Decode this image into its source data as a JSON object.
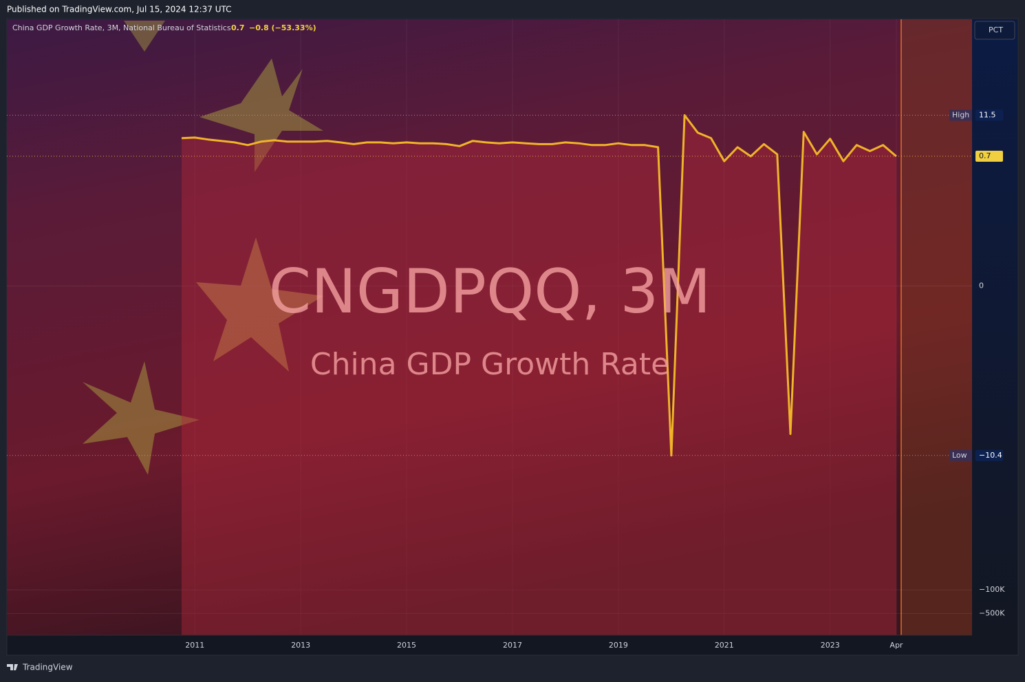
{
  "header": {
    "published": "Published on TradingView.com, Jul 15, 2024 12:37 UTC"
  },
  "footer": {
    "brand": "TradingView"
  },
  "chart_data": {
    "type": "line",
    "legend": {
      "title": "China GDP Growth Rate, 3M, National Bureau of Statistics",
      "value": 0.7,
      "change": "−0.8 (−53.33%)"
    },
    "watermark": {
      "symbol": "CNGDPQQ, 3M",
      "description": "China GDP Growth Rate"
    },
    "scale_mode": "PCT",
    "scale": "symlog",
    "x": [
      2010.75,
      2011,
      2011.25,
      2011.5,
      2011.75,
      2012,
      2012.25,
      2012.5,
      2012.75,
      2013,
      2013.25,
      2013.5,
      2013.75,
      2014,
      2014.25,
      2014.5,
      2014.75,
      2015,
      2015.25,
      2015.5,
      2015.75,
      2016,
      2016.25,
      2016.5,
      2016.75,
      2017,
      2017.25,
      2017.5,
      2017.75,
      2018,
      2018.25,
      2018.5,
      2018.75,
      2019,
      2019.25,
      2019.5,
      2019.75,
      2020,
      2020.25,
      2020.5,
      2020.75,
      2021,
      2021.25,
      2021.5,
      2021.75,
      2022,
      2022.25,
      2022.5,
      2022.75,
      2023,
      2023.25,
      2023.5,
      2023.75,
      2024,
      2024.25
    ],
    "series": [
      {
        "name": "China GDP Growth Rate",
        "color": "#f0b429",
        "values": [
          2.4,
          2.5,
          2.2,
          2.0,
          1.8,
          1.5,
          1.9,
          2.1,
          1.9,
          1.9,
          1.9,
          2.0,
          1.8,
          1.6,
          1.8,
          1.8,
          1.7,
          1.8,
          1.7,
          1.7,
          1.6,
          1.4,
          2.0,
          1.8,
          1.7,
          1.8,
          1.7,
          1.6,
          1.6,
          1.8,
          1.7,
          1.5,
          1.5,
          1.7,
          1.5,
          1.5,
          1.3,
          -10.4,
          11.5,
          3.5,
          2.4,
          0.5,
          1.3,
          0.7,
          1.6,
          0.8,
          -2.4,
          3.7,
          0.8,
          2.3,
          0.5,
          1.5,
          1.0,
          1.5,
          0.7
        ]
      }
    ],
    "high": {
      "label": "High",
      "value": 11.5
    },
    "low": {
      "label": "Low",
      "value": -10.4,
      "value_label": "−10.4"
    },
    "last_value": 0.7,
    "ylim": [
      -2200000,
      8000
    ],
    "yticks": [
      0,
      {
        "value": -100000,
        "label": "−100K"
      },
      {
        "value": -500000,
        "label": "−500K"
      }
    ],
    "xlim": [
      2007.45,
      2025.68
    ],
    "xticks": [
      2011,
      2013,
      2015,
      2017,
      2019,
      2021,
      2023,
      {
        "value": 2024.25,
        "label": "Apr"
      }
    ],
    "grid": true
  }
}
